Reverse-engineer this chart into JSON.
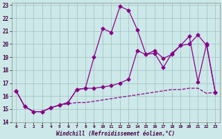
{
  "xlabel": "Windchill (Refroidissement éolien,°C)",
  "xlim": [
    -0.5,
    23.5
  ],
  "ylim": [
    14,
    23.2
  ],
  "yticks": [
    14,
    15,
    16,
    17,
    18,
    19,
    20,
    21,
    22,
    23
  ],
  "xticks": [
    0,
    1,
    2,
    3,
    4,
    5,
    6,
    7,
    8,
    9,
    10,
    11,
    12,
    13,
    14,
    15,
    16,
    17,
    18,
    19,
    20,
    21,
    22,
    23
  ],
  "background_color": "#cce8e8",
  "grid_color": "#9fbfbf",
  "line_color": "#880088",
  "line1_x": [
    0,
    1,
    2,
    3,
    4,
    5,
    6,
    7,
    8,
    9,
    10,
    11,
    12,
    13,
    14,
    15,
    16,
    17,
    18,
    19,
    20,
    21,
    22,
    23
  ],
  "line1_y": [
    16.4,
    15.2,
    14.8,
    14.8,
    15.1,
    15.3,
    15.4,
    15.5,
    15.5,
    15.6,
    15.7,
    15.8,
    15.9,
    16.0,
    16.1,
    16.2,
    16.3,
    16.4,
    16.5,
    16.5,
    16.6,
    16.6,
    16.2,
    16.3
  ],
  "line2_x": [
    0,
    1,
    2,
    3,
    4,
    5,
    6,
    7,
    8,
    9,
    10,
    11,
    12,
    13,
    14,
    15,
    16,
    17,
    18,
    19,
    20,
    21,
    22,
    23
  ],
  "line2_y": [
    16.4,
    15.2,
    14.8,
    14.8,
    15.1,
    15.3,
    15.5,
    16.5,
    16.6,
    19.0,
    21.2,
    20.9,
    22.9,
    22.6,
    21.1,
    19.2,
    19.3,
    18.2,
    19.3,
    19.9,
    20.6,
    17.1,
    20.0,
    16.3
  ],
  "line3_x": [
    0,
    1,
    2,
    3,
    4,
    5,
    6,
    7,
    8,
    9,
    10,
    11,
    12,
    13,
    14,
    15,
    16,
    17,
    18,
    19,
    20,
    21,
    22,
    23
  ],
  "line3_y": [
    16.4,
    15.2,
    14.8,
    14.8,
    15.1,
    15.3,
    15.5,
    16.5,
    16.6,
    16.6,
    16.7,
    16.8,
    17.0,
    17.3,
    19.5,
    19.2,
    19.5,
    18.9,
    19.2,
    19.9,
    20.0,
    20.7,
    19.9,
    16.3
  ]
}
